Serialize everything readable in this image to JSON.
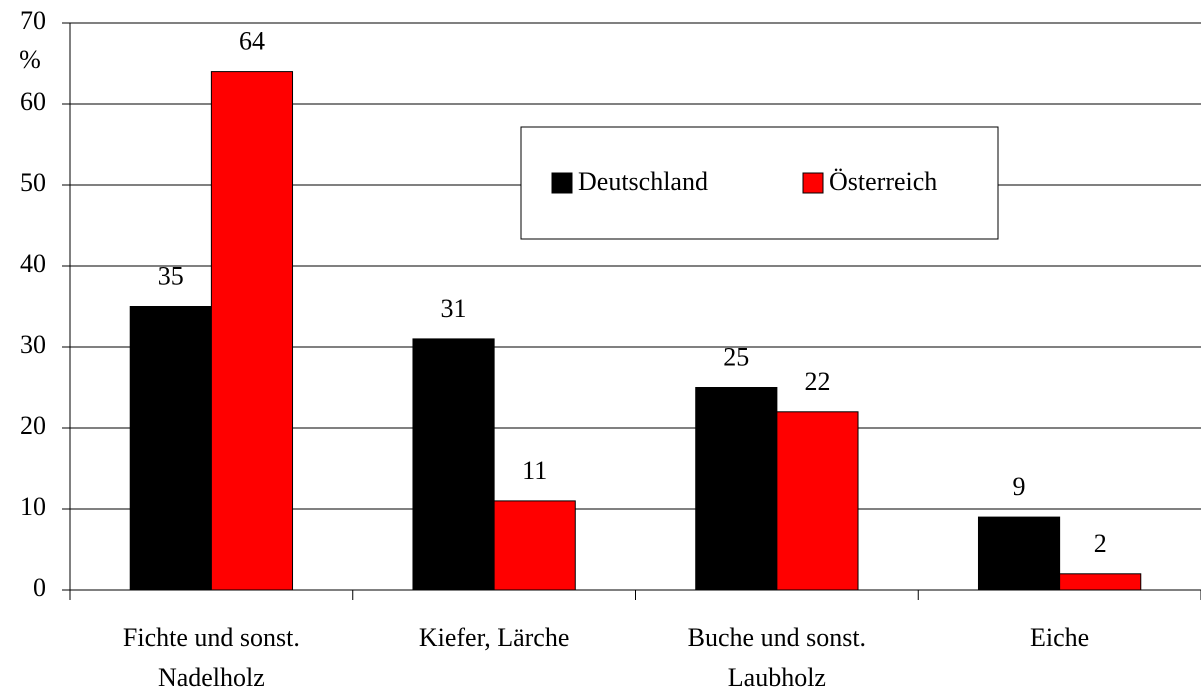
{
  "chart_data": {
    "type": "bar",
    "y_label": "%",
    "categories": [
      "Fichte und sonst. Nadelholz",
      "Kiefer, Lärche",
      "Buche und sonst. Laubholz",
      "Eiche"
    ],
    "series": [
      {
        "name": "Deutschland",
        "color": "#000000",
        "values": [
          35,
          31,
          25,
          9
        ]
      },
      {
        "name": "Österreich",
        "color": "#ff0000",
        "values": [
          64,
          11,
          22,
          2
        ]
      }
    ],
    "ylim": [
      0,
      70
    ],
    "yticks": [
      0,
      10,
      20,
      30,
      40,
      50,
      60,
      70
    ],
    "grid": true,
    "legend": "upper center"
  }
}
